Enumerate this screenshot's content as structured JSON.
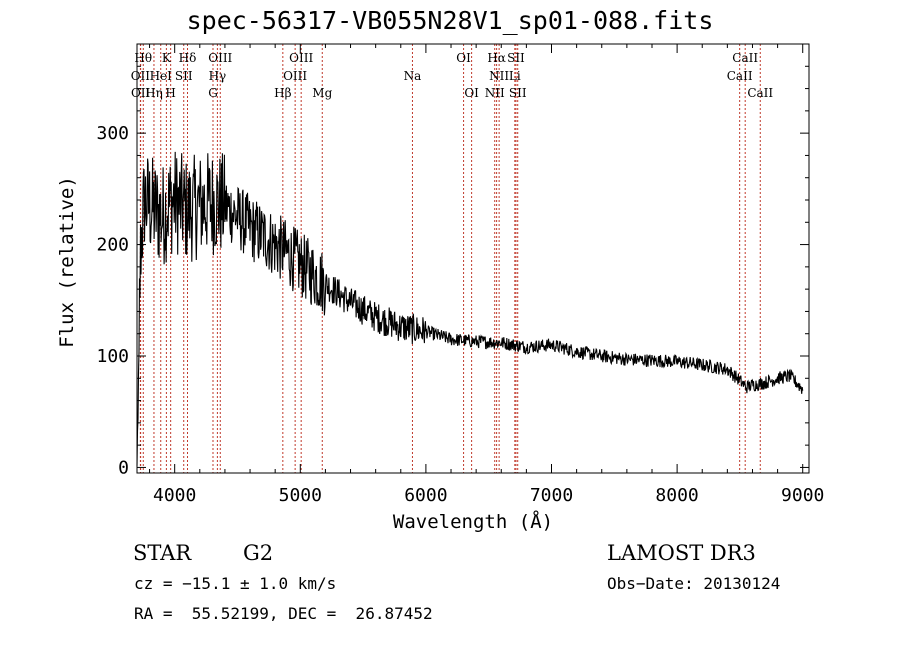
{
  "chart_data": {
    "type": "line",
    "title": "spec-56317-VB055N28V1_sp01-088.fits",
    "xlabel": "Wavelength (Å)",
    "ylabel": "Flux (relative)",
    "xlim": [
      3700,
      9050
    ],
    "ylim": [
      -5,
      380
    ],
    "xticks": [
      4000,
      5000,
      6000,
      7000,
      8000,
      9000
    ],
    "yticks": [
      0,
      100,
      200,
      300
    ],
    "series": [
      {
        "name": "flux",
        "trend_x": [
          3700,
          3705,
          3715,
          3730,
          3760,
          3800,
          3850,
          3900,
          3950,
          4000,
          4100,
          4200,
          4300,
          4400,
          4500,
          4600,
          4700,
          4800,
          4900,
          5000,
          5200,
          5400,
          5600,
          5800,
          6000,
          6200,
          6400,
          6600,
          6800,
          7000,
          7200,
          7400,
          7600,
          7800,
          8000,
          8200,
          8400,
          8500,
          8550,
          8600,
          8700,
          8800,
          8900,
          9000
        ],
        "trend_y": [
          5,
          40,
          120,
          200,
          240,
          235,
          230,
          225,
          235,
          240,
          230,
          235,
          238,
          235,
          225,
          215,
          208,
          200,
          192,
          182,
          165,
          148,
          135,
          126,
          122,
          115,
          113,
          112,
          108,
          110,
          104,
          100,
          97,
          96,
          95,
          92,
          88,
          78,
          72,
          74,
          76,
          80,
          82,
          70
        ],
        "noise_amplitude": [
          {
            "below": 4400,
            "value": 48
          },
          {
            "below": 5200,
            "value": 30
          },
          {
            "below": 6000,
            "value": 14
          },
          {
            "below": 9100,
            "value": 6
          }
        ]
      }
    ],
    "lines": [
      {
        "label": "Hθ",
        "x": 3750,
        "row": 0
      },
      {
        "label": "K",
        "x": 3934,
        "row": 0
      },
      {
        "label": "Hδ",
        "x": 4102,
        "row": 0
      },
      {
        "label": "OIII",
        "x": 4363,
        "row": 0
      },
      {
        "label": "OIII",
        "x": 5007,
        "row": 0
      },
      {
        "label": "OI",
        "x": 6300,
        "row": 0
      },
      {
        "label": "Hα",
        "x": 6563,
        "row": 0
      },
      {
        "label": "SII",
        "x": 6717,
        "row": 0
      },
      {
        "label": "CaII",
        "x": 8542,
        "row": 0
      },
      {
        "label": "OII",
        "x": 3727,
        "row": 1
      },
      {
        "label": "HeI",
        "x": 3889,
        "row": 1
      },
      {
        "label": "SII",
        "x": 4072,
        "row": 1
      },
      {
        "label": "Hγ",
        "x": 4340,
        "row": 1
      },
      {
        "label": "OIII",
        "x": 4959,
        "row": 1
      },
      {
        "label": "Na",
        "x": 5893,
        "row": 1
      },
      {
        "label": "NII",
        "x": 6583,
        "row": 1
      },
      {
        "label": "Li",
        "x": 6708,
        "row": 1
      },
      {
        "label": "CaII",
        "x": 8498,
        "row": 1
      },
      {
        "label": "OII",
        "x": 3729,
        "row": 2
      },
      {
        "label": "Hη",
        "x": 3835,
        "row": 2
      },
      {
        "label": "H",
        "x": 3968,
        "row": 2
      },
      {
        "label": "G",
        "x": 4305,
        "row": 2
      },
      {
        "label": "Hβ",
        "x": 4861,
        "row": 2
      },
      {
        "label": "Mg",
        "x": 5175,
        "row": 2
      },
      {
        "label": "OI",
        "x": 6364,
        "row": 2
      },
      {
        "label": "NII",
        "x": 6548,
        "row": 2
      },
      {
        "label": "SII",
        "x": 6731,
        "row": 2
      },
      {
        "label": "CaII",
        "x": 8662,
        "row": 2
      }
    ],
    "line_color": "#c0392b"
  },
  "info": {
    "object_class": "STAR",
    "subclass": "G2",
    "redshift": "cz = −15.1 ± 1.0 km/s",
    "coords": "RA =  55.52199, DEC =  26.87452",
    "survey": "LAMOST DR3",
    "obs_date": "Obs−Date: 20130124"
  }
}
